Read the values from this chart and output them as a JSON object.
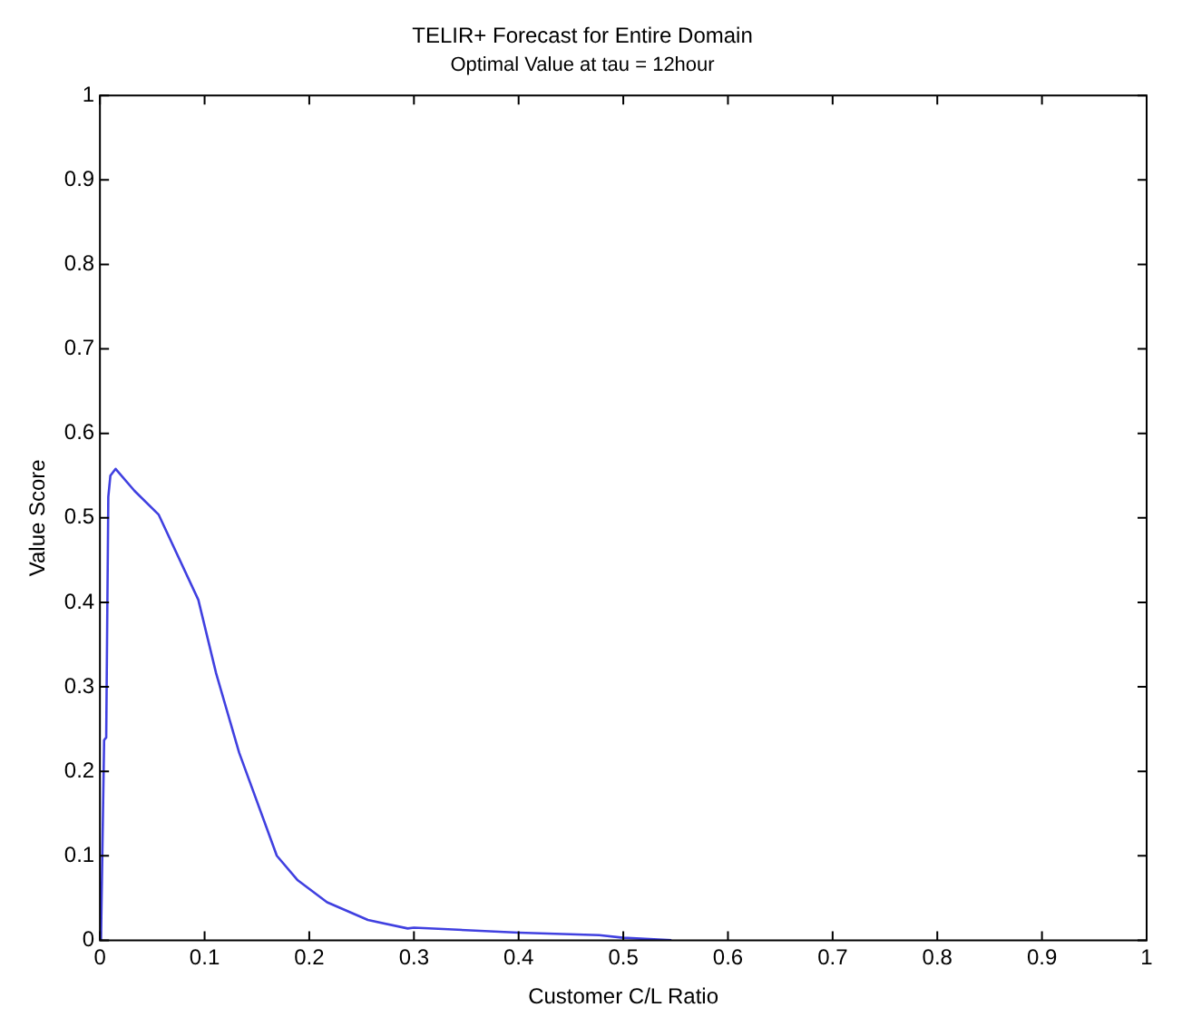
{
  "chart_data": {
    "type": "line",
    "title": "TELIR+ Forecast for Entire Domain",
    "subtitle": "Optimal Value at tau = 12hour",
    "xlabel": "Customer C/L Ratio",
    "ylabel": "Value Score",
    "xlim": [
      0,
      1
    ],
    "xticks": [
      0,
      0.1,
      0.2,
      0.3,
      0.4,
      0.5,
      0.6,
      0.7,
      0.8,
      0.9,
      1
    ],
    "ylim": [
      0,
      1
    ],
    "yticks": [
      0,
      0.1,
      0.2,
      0.3,
      0.4,
      0.5,
      0.6,
      0.7,
      0.8,
      0.9,
      1
    ],
    "grid": false,
    "legend": false,
    "marker": "none",
    "line_style": "solid",
    "series": [
      {
        "color": "#4040e0",
        "x": [
          0.001,
          0.004,
          0.006,
          0.008,
          0.01,
          0.015,
          0.033,
          0.056,
          0.094,
          0.111,
          0.133,
          0.169,
          0.189,
          0.217,
          0.256,
          0.294,
          0.3,
          0.4,
          0.477,
          0.5,
          0.546
        ],
        "values": [
          0,
          0.237,
          0.24,
          0.525,
          0.55,
          0.558,
          0.532,
          0.504,
          0.403,
          0.316,
          0.222,
          0.1,
          0.071,
          0.045,
          0.024,
          0.014,
          0.015,
          0.009,
          0.006,
          0.003,
          0
        ]
      }
    ]
  }
}
